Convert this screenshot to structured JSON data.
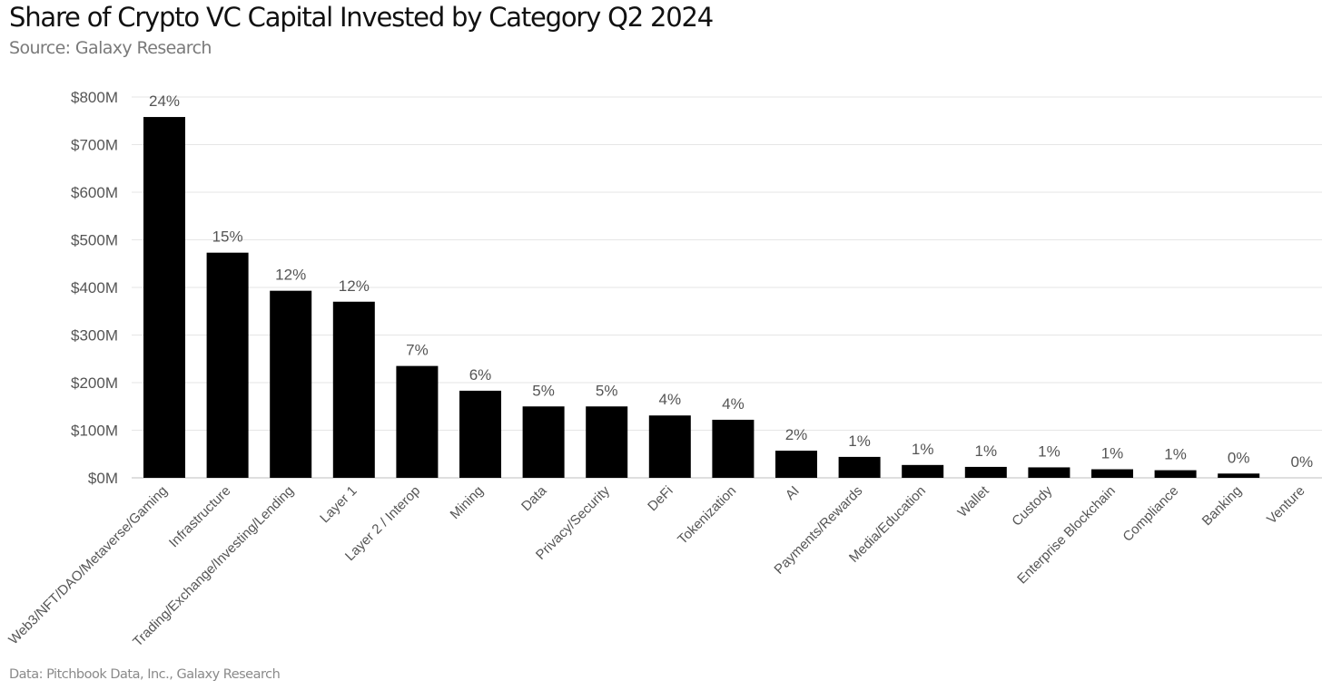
{
  "header": {
    "title": "Share of Crypto VC Capital Invested by Category Q2 2024",
    "subtitle": "Source: Galaxy Research"
  },
  "footer": {
    "note": "Data: Pitchbook Data, Inc., Galaxy Research"
  },
  "colors": {
    "bar": "#000000",
    "grid": "#e6e6e6",
    "axis_text": "#555555"
  },
  "chart_data": {
    "type": "bar",
    "title": "Share of Crypto VC Capital Invested by Category Q2 2024",
    "xlabel": "",
    "ylabel": "",
    "ylim": [
      0,
      800
    ],
    "y_unit": "$M",
    "yticks": [
      "$0M",
      "$100M",
      "$200M",
      "$300M",
      "$400M",
      "$500M",
      "$600M",
      "$700M",
      "$800M"
    ],
    "grid": true,
    "legend": "none",
    "categories": [
      "Web3/NFT/DAO/Metaverse/Gaming",
      "Infrastructure",
      "Trading/Exchange/Investing/Lending",
      "Layer 1",
      "Layer 2 / Interop",
      "Mining",
      "Data",
      "Privacy/Security",
      "DeFi",
      "Tokenization",
      "AI",
      "Payments/Rewards",
      "Media/Education",
      "Wallet",
      "Custody",
      "Enterprise Blockchain",
      "Compliance",
      "Banking",
      "Venture"
    ],
    "values": [
      758,
      473,
      393,
      370,
      235,
      183,
      150,
      150,
      131,
      122,
      57,
      44,
      27,
      23,
      22,
      18,
      16,
      9,
      0
    ],
    "data_labels": [
      "24%",
      "15%",
      "12%",
      "12%",
      "7%",
      "6%",
      "5%",
      "5%",
      "4%",
      "4%",
      "2%",
      "1%",
      "1%",
      "1%",
      "1%",
      "1%",
      "1%",
      "0%",
      "0%"
    ]
  }
}
